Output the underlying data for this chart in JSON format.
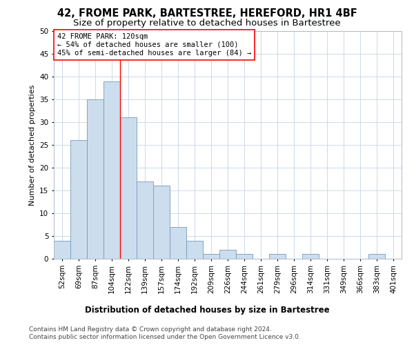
{
  "title1": "42, FROME PARK, BARTESTREE, HEREFORD, HR1 4BF",
  "title2": "Size of property relative to detached houses in Bartestree",
  "xlabel": "Distribution of detached houses by size in Bartestree",
  "ylabel": "Number of detached properties",
  "categories": [
    "52sqm",
    "69sqm",
    "87sqm",
    "104sqm",
    "122sqm",
    "139sqm",
    "157sqm",
    "174sqm",
    "192sqm",
    "209sqm",
    "226sqm",
    "244sqm",
    "261sqm",
    "279sqm",
    "296sqm",
    "314sqm",
    "331sqm",
    "349sqm",
    "366sqm",
    "383sqm",
    "401sqm"
  ],
  "values": [
    4,
    26,
    35,
    39,
    31,
    17,
    16,
    7,
    4,
    1,
    2,
    1,
    0,
    1,
    0,
    1,
    0,
    0,
    0,
    1,
    0
  ],
  "bar_color": "#ccdded",
  "bar_edge_color": "#7799bb",
  "property_line_x": 3.5,
  "annotation_line1": "42 FROME PARK: 120sqm",
  "annotation_line2": "← 54% of detached houses are smaller (100)",
  "annotation_line3": "45% of semi-detached houses are larger (84) →",
  "annotation_box_color": "white",
  "annotation_box_edge_color": "red",
  "vline_color": "red",
  "ylim": [
    0,
    50
  ],
  "yticks": [
    0,
    5,
    10,
    15,
    20,
    25,
    30,
    35,
    40,
    45,
    50
  ],
  "grid_color": "#ccd9e8",
  "background_color": "white",
  "footer1": "Contains HM Land Registry data © Crown copyright and database right 2024.",
  "footer2": "Contains public sector information licensed under the Open Government Licence v3.0.",
  "title1_fontsize": 10.5,
  "title2_fontsize": 9.5,
  "xlabel_fontsize": 8.5,
  "ylabel_fontsize": 8,
  "tick_fontsize": 7.5,
  "annotation_fontsize": 7.5,
  "footer_fontsize": 6.5
}
